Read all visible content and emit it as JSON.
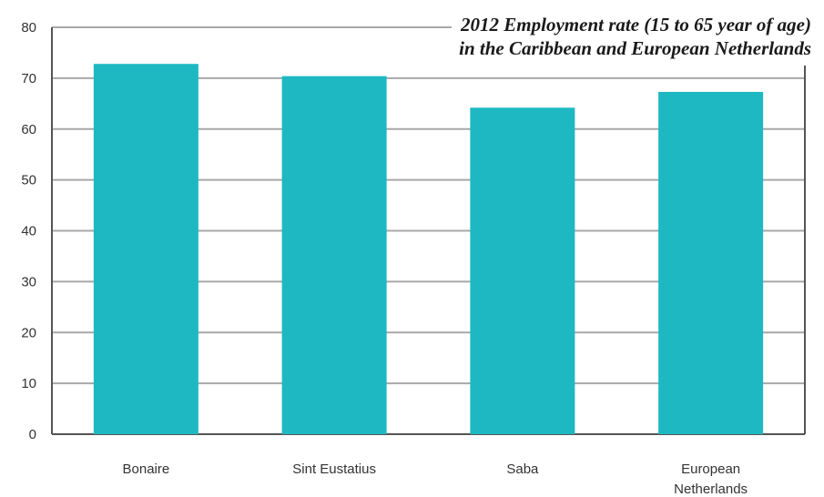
{
  "chart_data": {
    "type": "bar",
    "title": "",
    "annotation": [
      "2012 Employment rate (15 to 65 year of age)",
      "in the Caribbean and European Netherlands"
    ],
    "categories": [
      "Bonaire",
      "Sint Eustatius",
      "Saba",
      "European Netherlands"
    ],
    "category_lines": [
      [
        "Bonaire"
      ],
      [
        "Sint Eustatius"
      ],
      [
        "Saba"
      ],
      [
        "European",
        "Netherlands"
      ]
    ],
    "values": [
      72.8,
      70.4,
      64.2,
      67.3
    ],
    "xlabel": "",
    "ylabel": "",
    "ylim": [
      0,
      80
    ],
    "yticks": [
      "0",
      "10",
      "20",
      "30",
      "40",
      "50",
      "60",
      "70",
      "80"
    ],
    "grid": true,
    "legend": "none",
    "bar_color": "#1eb8c2",
    "grid_color": "#a8a8a8",
    "axis_color": "#555555"
  }
}
